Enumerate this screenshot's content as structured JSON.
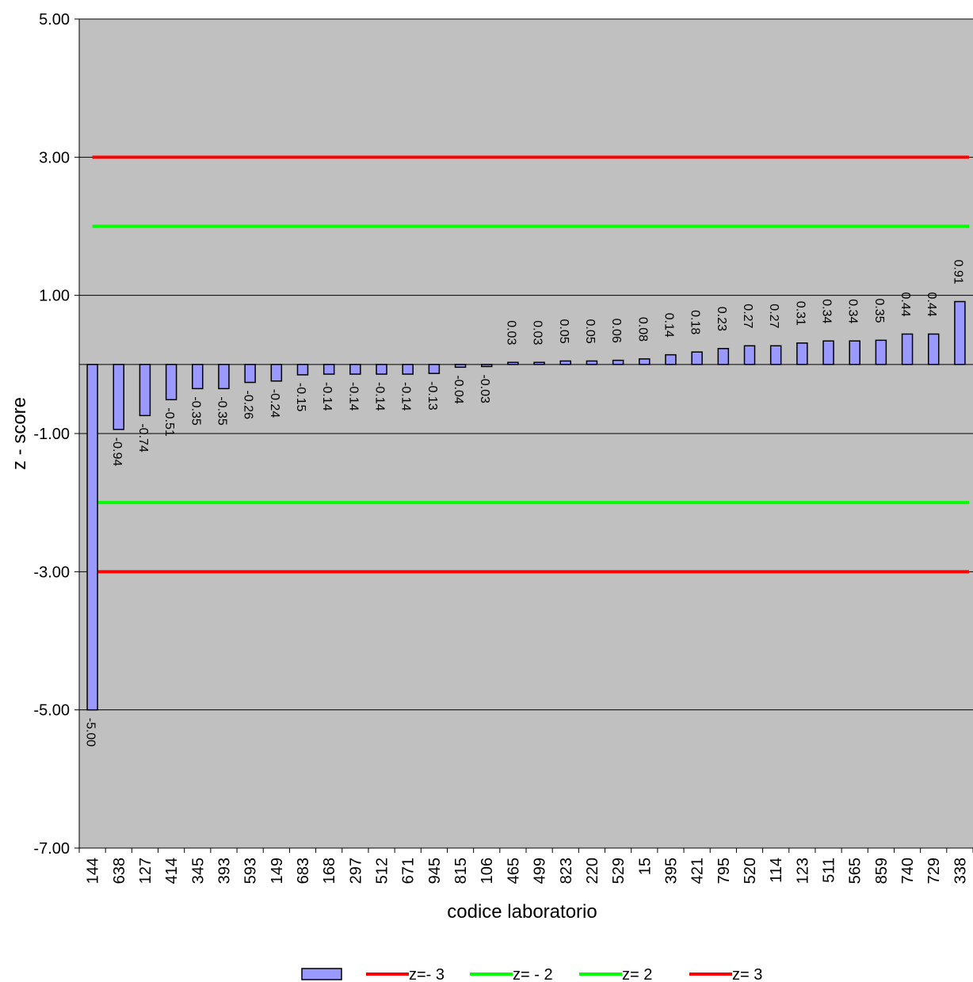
{
  "chart_data": {
    "type": "bar",
    "xlabel": "codice laboratorio",
    "ylabel": "z - score",
    "ylim": [
      -7,
      5
    ],
    "yticks": [
      5,
      3,
      1,
      -1,
      -3,
      -5,
      -7
    ],
    "ytick_labels": [
      "5.00",
      "3.00",
      "1.00",
      "-1.00",
      "-3.00",
      "-5.00",
      "-7.00"
    ],
    "grid": true,
    "legend_position": "bottom-center",
    "categories": [
      "144",
      "638",
      "127",
      "414",
      "345",
      "393",
      "593",
      "149",
      "683",
      "168",
      "297",
      "512",
      "671",
      "945",
      "815",
      "106",
      "465",
      "499",
      "823",
      "220",
      "529",
      "15",
      "395",
      "421",
      "795",
      "520",
      "114",
      "123",
      "511",
      "565",
      "859",
      "740",
      "729",
      "338"
    ],
    "series": [
      {
        "name": "",
        "color": "#9999ff",
        "values": [
          -5.0,
          -0.94,
          -0.74,
          -0.51,
          -0.35,
          -0.35,
          -0.26,
          -0.24,
          -0.15,
          -0.14,
          -0.14,
          -0.14,
          -0.14,
          -0.13,
          -0.04,
          -0.03,
          0.03,
          0.03,
          0.05,
          0.05,
          0.06,
          0.08,
          0.14,
          0.18,
          0.23,
          0.27,
          0.27,
          0.31,
          0.34,
          0.34,
          0.35,
          0.44,
          0.44,
          0.91
        ],
        "data_labels": [
          "-5.00",
          "-0.94",
          "-0.74",
          "-0.51",
          "-0.35",
          "-0.35",
          "-0.26",
          "-0.24",
          "-0.15",
          "-0.14",
          "-0.14",
          "-0.14",
          "-0.14",
          "-0.13",
          "-0.04",
          "-0.03",
          "0.03",
          "0.03",
          "0.05",
          "0.05",
          "0.06",
          "0.08",
          "0.14",
          "0.18",
          "0.23",
          "0.27",
          "0.27",
          "0.31",
          "0.34",
          "0.34",
          "0.35",
          "0.44",
          "0.44",
          "0.91"
        ]
      }
    ],
    "reference_lines": [
      {
        "name": "z=- 3",
        "value": -3,
        "color": "#ff0000"
      },
      {
        "name": "z= - 2",
        "value": -2,
        "color": "#00ff00"
      },
      {
        "name": "z= 2",
        "value": 2,
        "color": "#00ff00"
      },
      {
        "name": "z= 3",
        "value": 3,
        "color": "#ff0000"
      }
    ],
    "plot_background": "#c0c0c0"
  }
}
